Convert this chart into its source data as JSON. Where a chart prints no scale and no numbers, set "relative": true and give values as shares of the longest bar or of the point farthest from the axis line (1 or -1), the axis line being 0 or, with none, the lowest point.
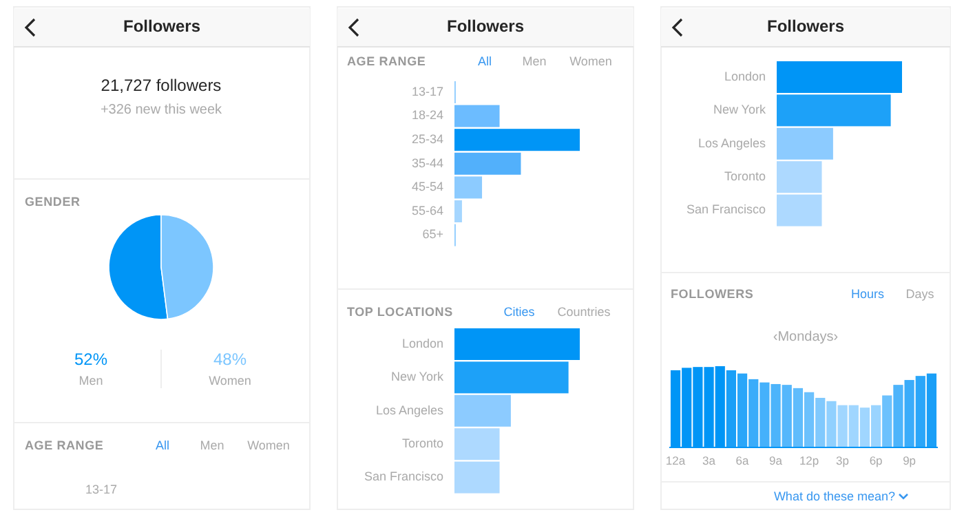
{
  "chart_data": [
    {
      "type": "other",
      "title": "Followers"
    },
    {
      "type": "other",
      "title": "21,727 followers",
      "subtitle": "+326 new this week"
    },
    {
      "type": "pie",
      "title": "GENDER",
      "categories": [
        "Men",
        "Women"
      ],
      "values": [
        52,
        48
      ],
      "colors": [
        "#0095f6",
        "#7cc6ff"
      ],
      "value_labels": [
        "52%",
        "48%"
      ]
    },
    {
      "type": "other",
      "title": "AGE RANGE",
      "annotations": [
        "All",
        "Men",
        "Women",
        "13-17"
      ]
    },
    {
      "type": "other",
      "title": "Followers"
    },
    {
      "type": "bar",
      "orientation": "horizontal",
      "relative": true,
      "title": "AGE RANGE",
      "annotations": [
        "All",
        "Men",
        "Women"
      ],
      "categories": [
        "13-17",
        "18-24",
        "25-34",
        "35-44",
        "45-54",
        "55-64",
        "65+"
      ],
      "values": [
        0.01,
        0.36,
        1,
        0.53,
        0.22,
        0.06,
        0.01
      ],
      "colors": [
        "#8ccbff",
        "#6cbcff",
        "#0095f6",
        "#52b0fb",
        "#8ccbff",
        "#a5d6ff",
        "#8ccbff"
      ]
    },
    {
      "type": "bar",
      "orientation": "horizontal",
      "relative": true,
      "title": "TOP LOCATIONS",
      "annotations": [
        "Cities",
        "Countries"
      ],
      "categories": [
        "London",
        "New York",
        "Los Angeles",
        "Toronto",
        "San Francisco"
      ],
      "values": [
        1,
        0.91,
        0.45,
        0.36,
        0.36
      ],
      "colors": [
        "#0095f6",
        "#1da1f8",
        "#8ccbff",
        "#add9ff",
        "#add9ff"
      ]
    },
    {
      "type": "other",
      "title": "Followers"
    },
    {
      "type": "bar",
      "orientation": "horizontal",
      "relative": true,
      "categories": [
        "London",
        "New York",
        "Los Angeles",
        "Toronto",
        "San Francisco"
      ],
      "values": [
        1,
        0.91,
        0.45,
        0.36,
        0.36
      ],
      "colors": [
        "#0095f6",
        "#1da1f8",
        "#8ccbff",
        "#add9ff",
        "#add9ff"
      ]
    },
    {
      "type": "bar",
      "relative": true,
      "title": "FOLLOWERS",
      "subtitle": "‹Mondays›",
      "annotations": [
        "Hours",
        "Days",
        "What do these mean?"
      ],
      "categories": [
        "12a",
        null,
        null,
        "3a",
        null,
        null,
        "6a",
        null,
        null,
        "9a",
        null,
        null,
        "12p",
        null,
        null,
        "3p",
        null,
        null,
        "6p",
        null,
        null,
        "9p",
        null,
        null
      ],
      "values": [
        0.95,
        0.98,
        0.99,
        0.99,
        1,
        0.95,
        0.91,
        0.84,
        0.8,
        0.78,
        0.77,
        0.73,
        0.68,
        0.61,
        0.57,
        0.52,
        0.52,
        0.49,
        0.52,
        0.64,
        0.77,
        0.83,
        0.88,
        0.91
      ],
      "colors": [
        "#0095f6",
        "#0095f6",
        "#0095f6",
        "#0095f6",
        "#0095f6",
        "#1a9ff7",
        "#2aa6f9",
        "#3aacfa",
        "#45b1fb",
        "#4db4fb",
        "#55b7fc",
        "#60bcfc",
        "#6cc1fd",
        "#80c9fd",
        "#90d0fe",
        "#a0d6ff",
        "#a0d6ff",
        "#a0d6ff",
        "#9ad4ff",
        "#6cc1fd",
        "#4db4fb",
        "#3aacfa",
        "#2aa6f9",
        "#1a9ff7"
      ]
    }
  ]
}
